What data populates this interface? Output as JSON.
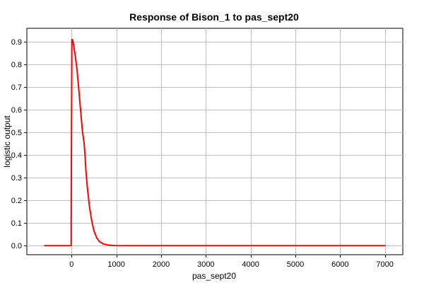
{
  "chart_data": {
    "type": "line",
    "title": "Response of Bison_1 to pas_sept20",
    "xlabel": "pas_sept20",
    "ylabel": "logistic output",
    "xlim": [
      -1000,
      7400
    ],
    "ylim": [
      -0.04,
      0.96
    ],
    "xticks": [
      0,
      1000,
      2000,
      3000,
      4000,
      5000,
      6000,
      7000
    ],
    "yticks": [
      0.0,
      0.1,
      0.2,
      0.3,
      0.4,
      0.5,
      0.6,
      0.7,
      0.8,
      0.9
    ],
    "ytick_labels": [
      "0.0",
      "0.1",
      "0.2",
      "0.3",
      "0.4",
      "0.5",
      "0.6",
      "0.7",
      "0.8",
      "0.9"
    ],
    "grid": true,
    "series": [
      {
        "color": "#ff0000",
        "x": [
          -600,
          -10,
          -10,
          5,
          20,
          50,
          80,
          120,
          160,
          200,
          240,
          280,
          300,
          320,
          350,
          400,
          450,
          500,
          560,
          620,
          700,
          800,
          900,
          1000,
          2000,
          3000,
          4000,
          5000,
          6000,
          7000
        ],
        "y": [
          0.0,
          0.0,
          0.1,
          0.91,
          0.91,
          0.88,
          0.84,
          0.78,
          0.69,
          0.6,
          0.51,
          0.45,
          0.4,
          0.33,
          0.26,
          0.17,
          0.11,
          0.065,
          0.035,
          0.018,
          0.008,
          0.003,
          0.001,
          0.0,
          0.0,
          0.0,
          0.0,
          0.0,
          0.0,
          0.0
        ]
      }
    ]
  }
}
